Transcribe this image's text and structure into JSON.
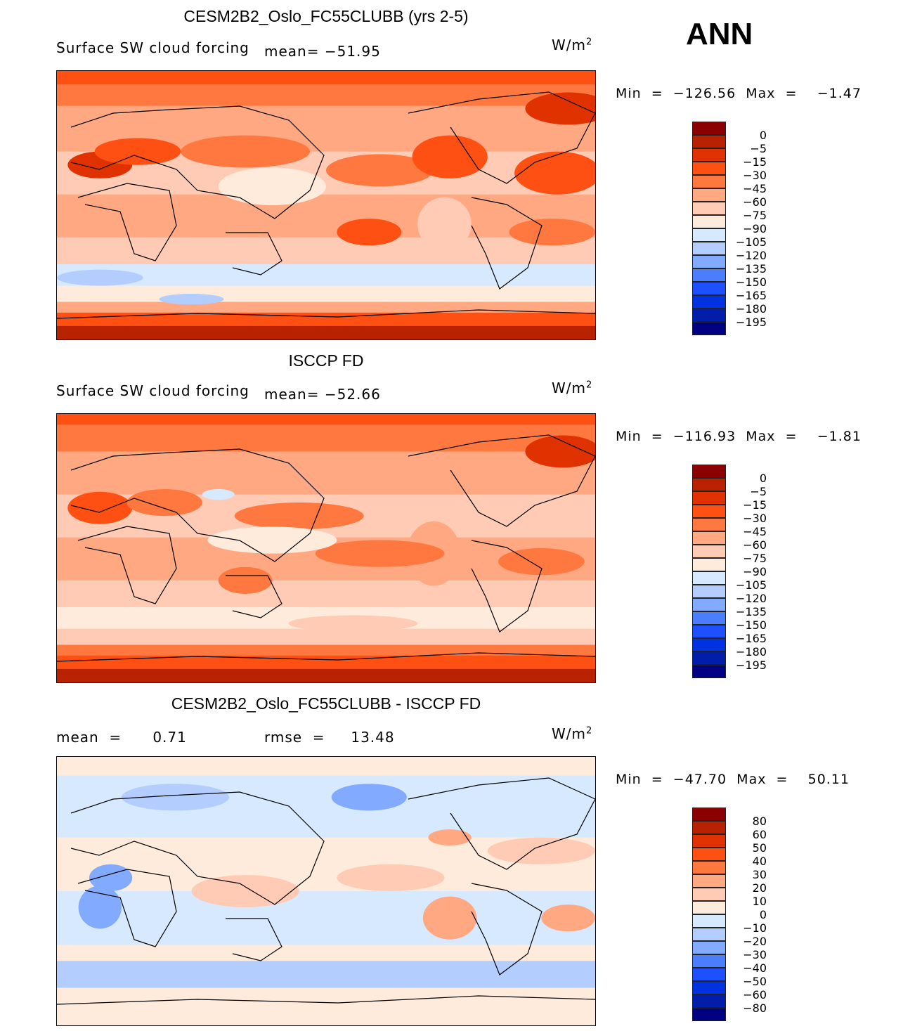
{
  "season": "ANN",
  "units": "W/m2",
  "palette": [
    "#8b0000",
    "#b82200",
    "#e03200",
    "#ff5014",
    "#ff7840",
    "#ffa882",
    "#ffcbb5",
    "#ffebdc",
    "#d7e9ff",
    "#b4cdff",
    "#82aaff",
    "#4b7dff",
    "#1e50ff",
    "#0032e1",
    "#001eaa",
    "#000082"
  ],
  "panels": [
    {
      "title": "CESM2B2_Oslo_FC55CLUBB (yrs 2-5)",
      "variable": "Surface  SW  cloud  forcing",
      "stat1": "mean=  −51.95",
      "stat2": "",
      "units_label": "W/m",
      "units_sup": "2",
      "minmax": "Min  =  −126.56  Max  =    −1.47",
      "levels": [
        "0",
        "−5",
        "−15",
        "−30",
        "−45",
        "−60",
        "−75",
        "−90",
        "−105",
        "−120",
        "−135",
        "−150",
        "−165",
        "−180",
        "−195"
      ]
    },
    {
      "title": "ISCCP FD",
      "variable": "Surface  SW  cloud  forcing",
      "stat1": "mean=  −52.66",
      "stat2": "",
      "units_label": "W/m",
      "units_sup": "2",
      "minmax": "Min  =  −116.93  Max  =    −1.81",
      "levels": [
        "0",
        "−5",
        "−15",
        "−30",
        "−45",
        "−60",
        "−75",
        "−90",
        "−105",
        "−120",
        "−135",
        "−150",
        "−165",
        "−180",
        "−195"
      ]
    },
    {
      "title": "CESM2B2_Oslo_FC55CLUBB - ISCCP FD",
      "variable": "",
      "stat1": "mean  =      0.71",
      "stat2": "rmse  =     13.48",
      "units_label": "W/m",
      "units_sup": "2",
      "minmax": "Min  =  −47.70  Max  =    50.11",
      "levels": [
        "80",
        "60",
        "50",
        "40",
        "30",
        "20",
        "10",
        "0",
        "−10",
        "−20",
        "−30",
        "−40",
        "−50",
        "−60",
        "−80"
      ]
    }
  ]
}
